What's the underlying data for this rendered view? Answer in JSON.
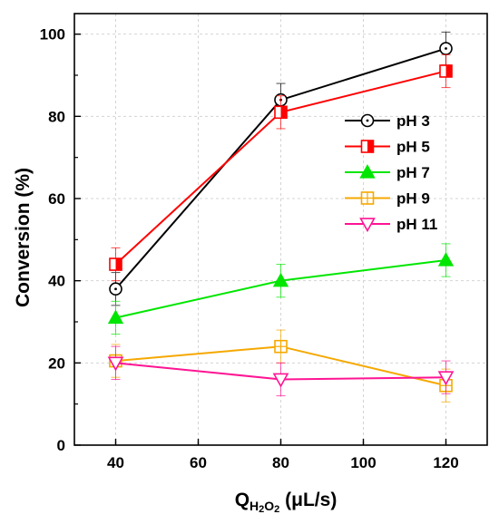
{
  "chart_data": {
    "type": "line",
    "x": [
      40,
      80,
      120
    ],
    "xlim": [
      30,
      130
    ],
    "ylim": [
      0,
      105
    ],
    "xticks": [
      40,
      60,
      80,
      100,
      120
    ],
    "yticks": [
      0,
      20,
      40,
      60,
      80,
      100
    ],
    "ylabel": "Conversion (%)",
    "xlabel": {
      "main": "Q",
      "sub1": "H",
      "sub2": "2",
      "sub3": "O",
      "sub4": "2",
      "unit": " (μL/s)"
    },
    "grid": true,
    "legend_position": "right-middle",
    "series": [
      {
        "name": "pH 3",
        "color": "#000000",
        "marker": "circle",
        "values": [
          38,
          84,
          96.5
        ],
        "errors": [
          4,
          4,
          4
        ]
      },
      {
        "name": "pH 5",
        "color": "#ff0000",
        "marker": "square-half",
        "values": [
          44,
          81,
          91
        ],
        "errors": [
          4,
          4,
          4
        ]
      },
      {
        "name": "pH 7",
        "color": "#00e600",
        "marker": "triangle-up",
        "values": [
          31,
          40,
          45
        ],
        "errors": [
          4,
          4,
          4
        ]
      },
      {
        "name": "pH 9",
        "color": "#f5a800",
        "marker": "square",
        "values": [
          20.5,
          24,
          14.5
        ],
        "errors": [
          4,
          4,
          4
        ]
      },
      {
        "name": "pH 11",
        "color": "#ff1493",
        "marker": "triangle-down",
        "values": [
          20,
          16,
          16.5
        ],
        "errors": [
          4,
          4,
          4
        ]
      }
    ]
  }
}
